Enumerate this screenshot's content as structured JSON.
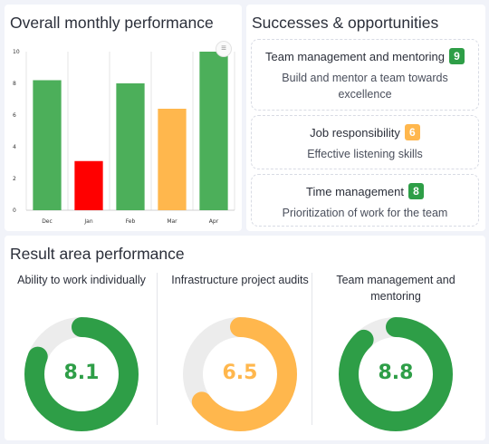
{
  "performance": {
    "title": "Overall monthly performance",
    "menu_icon": "hamburger-menu-icon",
    "chart_data": {
      "type": "bar",
      "categories": [
        "Dec",
        "Jan",
        "Feb",
        "Mar",
        "Apr"
      ],
      "values": [
        8.2,
        3.1,
        8.0,
        6.4,
        10
      ],
      "colors": [
        "#4caf5a",
        "#ff0000",
        "#4caf5a",
        "#ffb74d",
        "#4caf5a"
      ],
      "ylim": [
        0,
        10
      ],
      "yticks": [
        "0",
        "2",
        "4",
        "6",
        "8",
        "10"
      ],
      "grid": "vertical",
      "title": "",
      "xlabel": "",
      "ylabel": ""
    }
  },
  "successes": {
    "title": "Successes & opportunities",
    "items": [
      {
        "label": "Team management and mentoring",
        "score": "9",
        "color": "#2e9e47",
        "description": "Build and mentor a team towards excellence"
      },
      {
        "label": "Job responsibility",
        "score": "6",
        "color": "#ffb74d",
        "description": "Effective listening skills"
      },
      {
        "label": "Time management",
        "score": "8",
        "color": "#2e9e47",
        "description": "Prioritization of work for the team"
      }
    ]
  },
  "result_area": {
    "title": "Result area performance",
    "metrics": [
      {
        "label": "Ability to work individually",
        "value": "8.1",
        "fraction": 0.81,
        "color": "#2e9e47"
      },
      {
        "label": "Infrastructure project audits",
        "value": "6.5",
        "fraction": 0.65,
        "color": "#ffb74d"
      },
      {
        "label": "Team management and mentoring",
        "value": "8.8",
        "fraction": 0.88,
        "color": "#2e9e47"
      }
    ],
    "track_color": "#ececec"
  }
}
